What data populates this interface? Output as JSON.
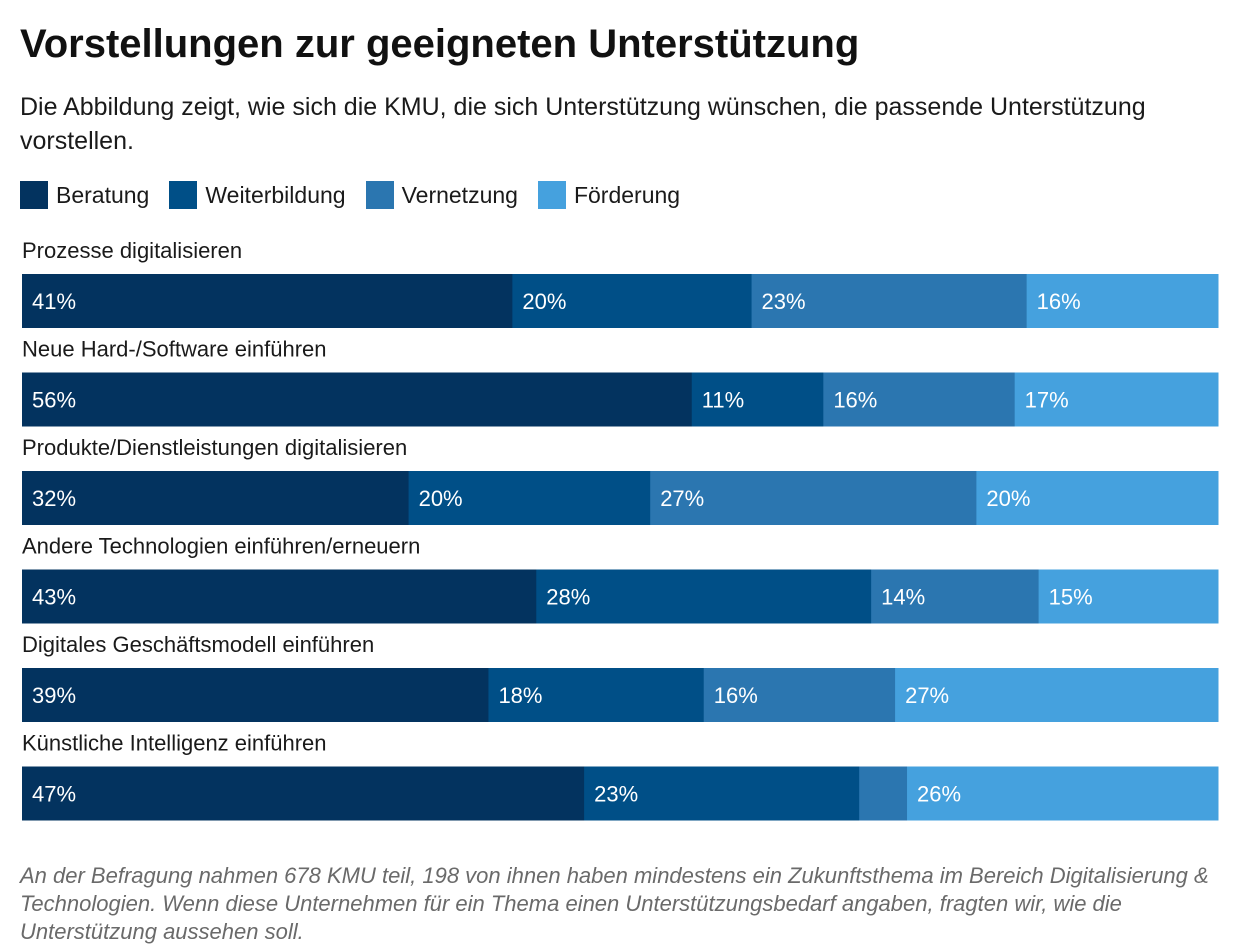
{
  "header": {
    "title": "Vorstellungen zur geeigneten Unterstützung",
    "subtitle": "Die Abbildung zeigt, wie sich die KMU, die sich Unterstützung wünschen, die passende Unterstützung vorstellen."
  },
  "footnote": "An der Befragung nahmen 678 KMU teil, 198 von ihnen haben mindestens ein Zukunftsthema im Bereich Digitalisierung & Technologien. Wenn diese Unternehmen für ein Thema einen Unterstützungsbedarf angaben, fragten wir, wie die Unterstützung aussehen soll.",
  "colors": {
    "text_on_bar": "#ffffff",
    "label_text": "#1a1a1a"
  },
  "chart_data": {
    "type": "bar",
    "orientation": "horizontal",
    "stacked": true,
    "normalized": true,
    "title": "Vorstellungen zur geeigneten Unterstützung",
    "legend_position": "top-left",
    "grid": false,
    "categories": [
      "Prozesse digitalisieren",
      "Neue Hard-/Software einführen",
      "Produkte/Dienstleistungen digitalisieren",
      "Andere Technologien einführen/erneuern",
      "Digitales Geschäftsmodell einführen",
      "Künstliche Intelligenz einführen"
    ],
    "series": [
      {
        "name": "Beratung",
        "color": "#03335f",
        "values": [
          41,
          56,
          32,
          43,
          39,
          47
        ],
        "labels": [
          "41%",
          "56%",
          "32%",
          "43%",
          "39%",
          "47%"
        ]
      },
      {
        "name": "Weiterbildung",
        "color": "#004f87",
        "values": [
          20,
          11,
          20,
          28,
          18,
          23
        ],
        "labels": [
          "20%",
          "11%",
          "20%",
          "28%",
          "18%",
          "23%"
        ]
      },
      {
        "name": "Vernetzung",
        "color": "#2b76b0",
        "values": [
          23,
          16,
          27,
          14,
          16,
          4
        ],
        "labels": [
          "23%",
          "16%",
          "27%",
          "14%",
          "16%",
          ""
        ]
      },
      {
        "name": "Förderung",
        "color": "#45a1de",
        "values": [
          16,
          17,
          20,
          15,
          27,
          26
        ],
        "labels": [
          "16%",
          "17%",
          "20%",
          "15%",
          "27%",
          "26%"
        ]
      }
    ]
  }
}
